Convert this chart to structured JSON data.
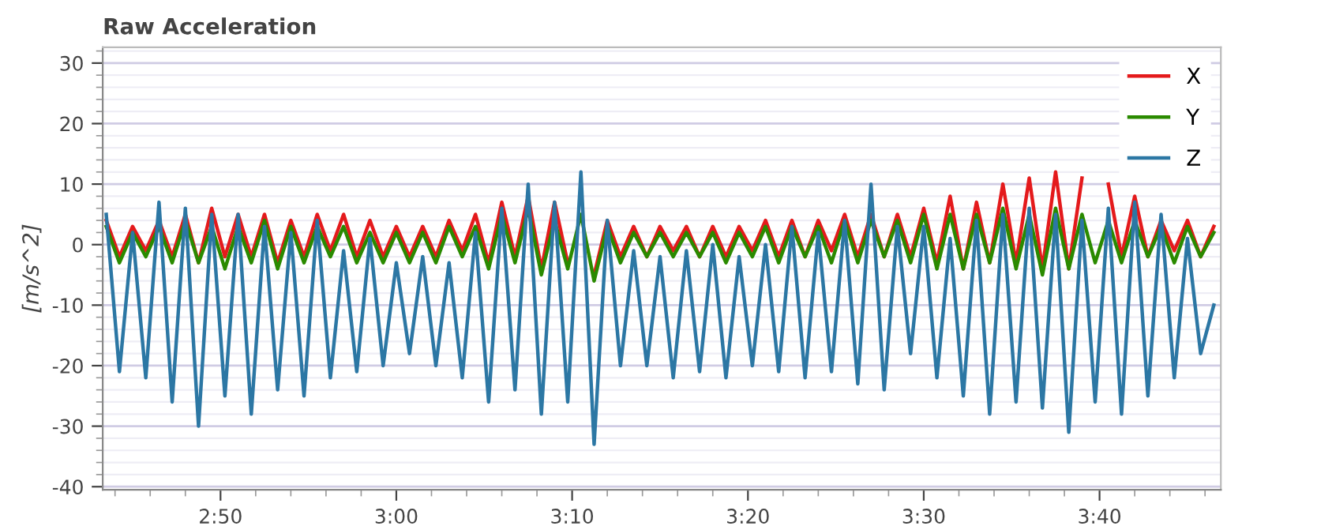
{
  "chart_data": {
    "type": "line",
    "title": "Raw Acceleration",
    "ylabel": "[m/s^2]",
    "x": [
      163.5,
      164.25,
      165,
      165.75,
      166.5,
      167.25,
      168,
      168.75,
      169.5,
      170.25,
      171,
      171.75,
      172.5,
      173.25,
      174,
      174.75,
      175.5,
      176.25,
      177,
      177.75,
      178.5,
      179.25,
      180,
      180.75,
      181.5,
      182.25,
      183,
      183.75,
      184.5,
      185.25,
      186,
      186.75,
      187.5,
      188.25,
      189,
      189.75,
      190.5,
      191.25,
      192,
      192.75,
      193.5,
      194.25,
      195,
      195.75,
      196.5,
      197.25,
      198,
      198.75,
      199.5,
      200.25,
      201,
      201.75,
      202.5,
      203.25,
      204,
      204.75,
      205.5,
      206.25,
      207,
      207.75,
      208.5,
      209.25,
      210,
      210.75,
      211.5,
      212.25,
      213,
      213.75,
      214.5,
      215.25,
      216,
      216.75,
      217.5,
      218.25,
      219,
      219.75,
      220.5,
      221.25,
      222,
      222.75,
      223.5,
      224.25,
      225,
      225.75,
      226.5
    ],
    "series": [
      {
        "name": "X",
        "color": "#e41a1c",
        "values": [
          4,
          -2,
          3,
          -1,
          4,
          -2,
          5,
          -3,
          6,
          -2,
          5,
          -2,
          5,
          -3,
          4,
          -2,
          5,
          -1,
          5,
          -2,
          4,
          -2,
          3,
          -2,
          3,
          -2,
          4,
          -1,
          5,
          -3,
          7,
          -2,
          8,
          -4,
          7,
          -3,
          null,
          -5,
          4,
          -2,
          3,
          -2,
          3,
          -1,
          3,
          -2,
          3,
          -2,
          3,
          -1,
          4,
          -2,
          4,
          -2,
          4,
          -1,
          5,
          -2,
          5,
          -2,
          5,
          -2,
          6,
          -3,
          8,
          -4,
          7,
          -3,
          10,
          -3,
          11,
          -4,
          12,
          -4,
          11,
          null,
          10,
          -2,
          8,
          -2,
          4,
          -1,
          4,
          -2,
          3
        ]
      },
      {
        "name": "Y",
        "color": "#2a8a00",
        "values": [
          3,
          -3,
          2,
          -2,
          3,
          -3,
          4,
          -3,
          3,
          -4,
          3,
          -3,
          4,
          -4,
          3,
          -3,
          3,
          -2,
          3,
          -3,
          2,
          -3,
          2,
          -3,
          2,
          -3,
          3,
          -2,
          3,
          -4,
          5,
          -3,
          6,
          -5,
          4,
          -4,
          5,
          -6,
          3,
          -3,
          2,
          -2,
          2,
          -2,
          2,
          -2,
          2,
          -3,
          2,
          -2,
          3,
          -3,
          3,
          -2,
          3,
          -3,
          4,
          -3,
          4,
          -2,
          4,
          -3,
          5,
          -4,
          5,
          -4,
          5,
          -3,
          6,
          -4,
          5,
          -5,
          6,
          -4,
          5,
          -3,
          4,
          -3,
          4,
          -2,
          3,
          -3,
          3,
          -2,
          2
        ]
      },
      {
        "name": "Z",
        "color": "#2c77a4",
        "values": [
          5,
          -21,
          2,
          -22,
          7,
          -26,
          6,
          -30,
          5,
          -25,
          5,
          -28,
          3,
          -24,
          2,
          -25,
          4,
          -22,
          -1,
          -21,
          1,
          -20,
          -3,
          -18,
          -2,
          -20,
          -3,
          -22,
          2,
          -26,
          6,
          -24,
          10,
          -28,
          7,
          -26,
          12,
          -33,
          4,
          -20,
          -1,
          -20,
          -2,
          -22,
          -1,
          -21,
          0,
          -22,
          -2,
          -20,
          0,
          -21,
          3,
          -22,
          2,
          -21,
          4,
          -23,
          10,
          -24,
          3,
          -18,
          3,
          -22,
          1,
          -25,
          4,
          -28,
          5,
          -26,
          6,
          -27,
          5,
          -31,
          4,
          -26,
          6,
          -28,
          7,
          -25,
          5,
          -22,
          1,
          -18,
          -10
        ]
      }
    ],
    "xlim": [
      163.3,
      226.9
    ],
    "xticks": [
      {
        "value": 170,
        "label": "2:50"
      },
      {
        "value": 180,
        "label": "3:00"
      },
      {
        "value": 190,
        "label": "3:10"
      },
      {
        "value": 200,
        "label": "3:20"
      },
      {
        "value": 210,
        "label": "3:30"
      },
      {
        "value": 220,
        "label": "3:40"
      }
    ],
    "ylim": [
      -40.5,
      32.6
    ],
    "yticks": [
      -40,
      -30,
      -20,
      -10,
      0,
      10,
      20,
      30
    ],
    "grid": "y",
    "legend": "top right",
    "marker": "none",
    "line_style": "solid"
  }
}
